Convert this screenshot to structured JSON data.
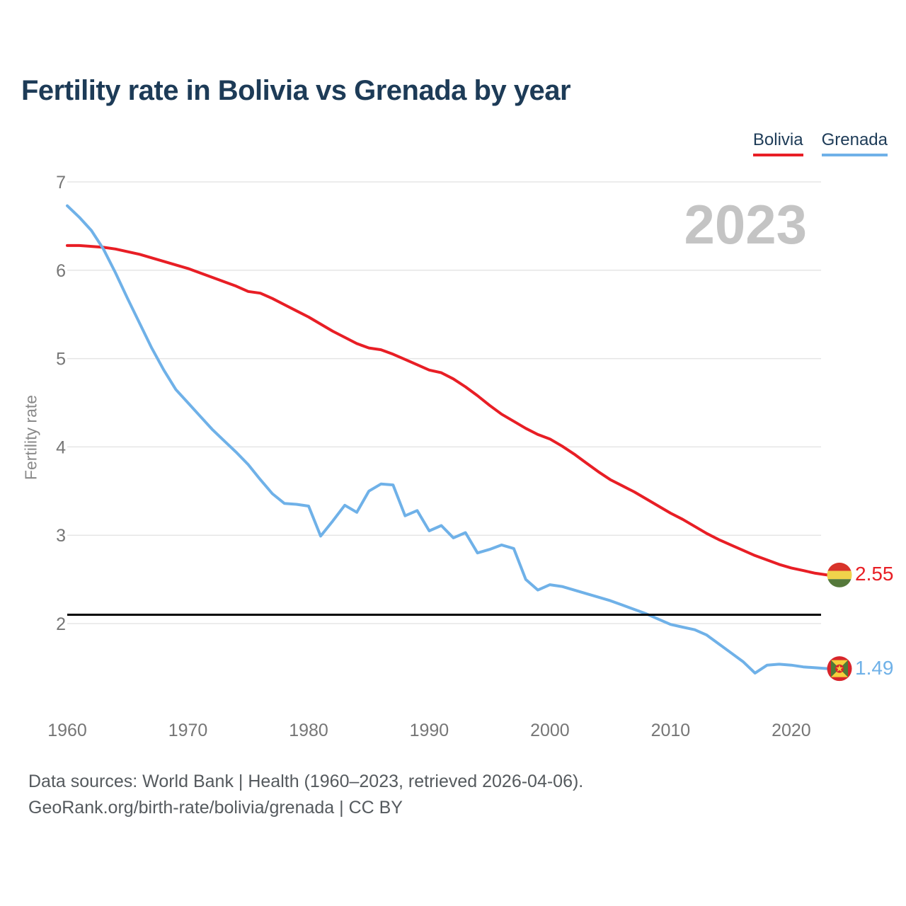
{
  "header": {
    "title": "Fertility rate in Bolivia vs Grenada by year"
  },
  "legend": {
    "items": [
      {
        "label": "Bolivia",
        "color": "#e81e25"
      },
      {
        "label": "Grenada",
        "color": "#6fb1e8"
      }
    ]
  },
  "watermark": "2023",
  "chart_data": {
    "type": "line",
    "title": "Fertility rate in Bolivia vs Grenada by year",
    "xlabel": "",
    "ylabel": "Fertility rate",
    "xlim": [
      1960,
      2023
    ],
    "ylim": [
      2,
      7
    ],
    "x_ticks": [
      1960,
      1970,
      1980,
      1990,
      2000,
      2010,
      2020
    ],
    "y_ticks": [
      2,
      3,
      4,
      5,
      6,
      7
    ],
    "grid": "horizontal",
    "legend_position": "top-right",
    "reference_line": {
      "value": 2.1,
      "color": "#000000"
    },
    "x": [
      1960,
      1961,
      1962,
      1963,
      1964,
      1965,
      1966,
      1967,
      1968,
      1969,
      1970,
      1971,
      1972,
      1973,
      1974,
      1975,
      1976,
      1977,
      1978,
      1979,
      1980,
      1981,
      1982,
      1983,
      1984,
      1985,
      1986,
      1987,
      1988,
      1989,
      1990,
      1991,
      1992,
      1993,
      1994,
      1995,
      1996,
      1997,
      1998,
      1999,
      2000,
      2001,
      2002,
      2003,
      2004,
      2005,
      2006,
      2007,
      2008,
      2009,
      2010,
      2011,
      2012,
      2013,
      2014,
      2015,
      2016,
      2017,
      2018,
      2019,
      2020,
      2021,
      2022,
      2023
    ],
    "series": [
      {
        "name": "Bolivia",
        "color": "#e81e25",
        "end_label": "2.55",
        "flag": "bolivia",
        "values": [
          6.28,
          6.28,
          6.27,
          6.26,
          6.24,
          6.21,
          6.18,
          6.14,
          6.1,
          6.06,
          6.02,
          5.97,
          5.92,
          5.87,
          5.82,
          5.76,
          5.74,
          5.68,
          5.61,
          5.54,
          5.47,
          5.39,
          5.31,
          5.24,
          5.17,
          5.12,
          5.1,
          5.05,
          4.99,
          4.93,
          4.87,
          4.84,
          4.77,
          4.68,
          4.58,
          4.47,
          4.37,
          4.29,
          4.21,
          4.14,
          4.09,
          4.01,
          3.92,
          3.82,
          3.72,
          3.63,
          3.56,
          3.49,
          3.41,
          3.33,
          3.25,
          3.18,
          3.1,
          3.02,
          2.95,
          2.89,
          2.83,
          2.77,
          2.72,
          2.67,
          2.63,
          2.6,
          2.57,
          2.55
        ]
      },
      {
        "name": "Grenada",
        "color": "#6fb1e8",
        "end_label": "1.49",
        "flag": "grenada",
        "values": [
          6.73,
          6.6,
          6.45,
          6.24,
          5.97,
          5.68,
          5.4,
          5.12,
          4.87,
          4.65,
          4.5,
          4.35,
          4.2,
          4.07,
          3.94,
          3.8,
          3.63,
          3.47,
          3.36,
          3.35,
          3.33,
          2.99,
          3.16,
          3.34,
          3.26,
          3.5,
          3.58,
          3.57,
          3.22,
          3.28,
          3.05,
          3.11,
          2.97,
          3.03,
          2.8,
          2.84,
          2.89,
          2.85,
          2.5,
          2.38,
          2.44,
          2.42,
          2.38,
          2.34,
          2.3,
          2.26,
          2.21,
          2.16,
          2.11,
          2.05,
          1.99,
          1.96,
          1.93,
          1.87,
          1.77,
          1.67,
          1.57,
          1.44,
          1.53,
          1.54,
          1.53,
          1.51,
          1.5,
          1.49
        ]
      }
    ]
  },
  "footer": {
    "line1": "Data sources: World Bank | Health (1960–2023, retrieved 2026-04-06).",
    "line2": "GeoRank.org/birth-rate/bolivia/grenada | CC BY"
  }
}
